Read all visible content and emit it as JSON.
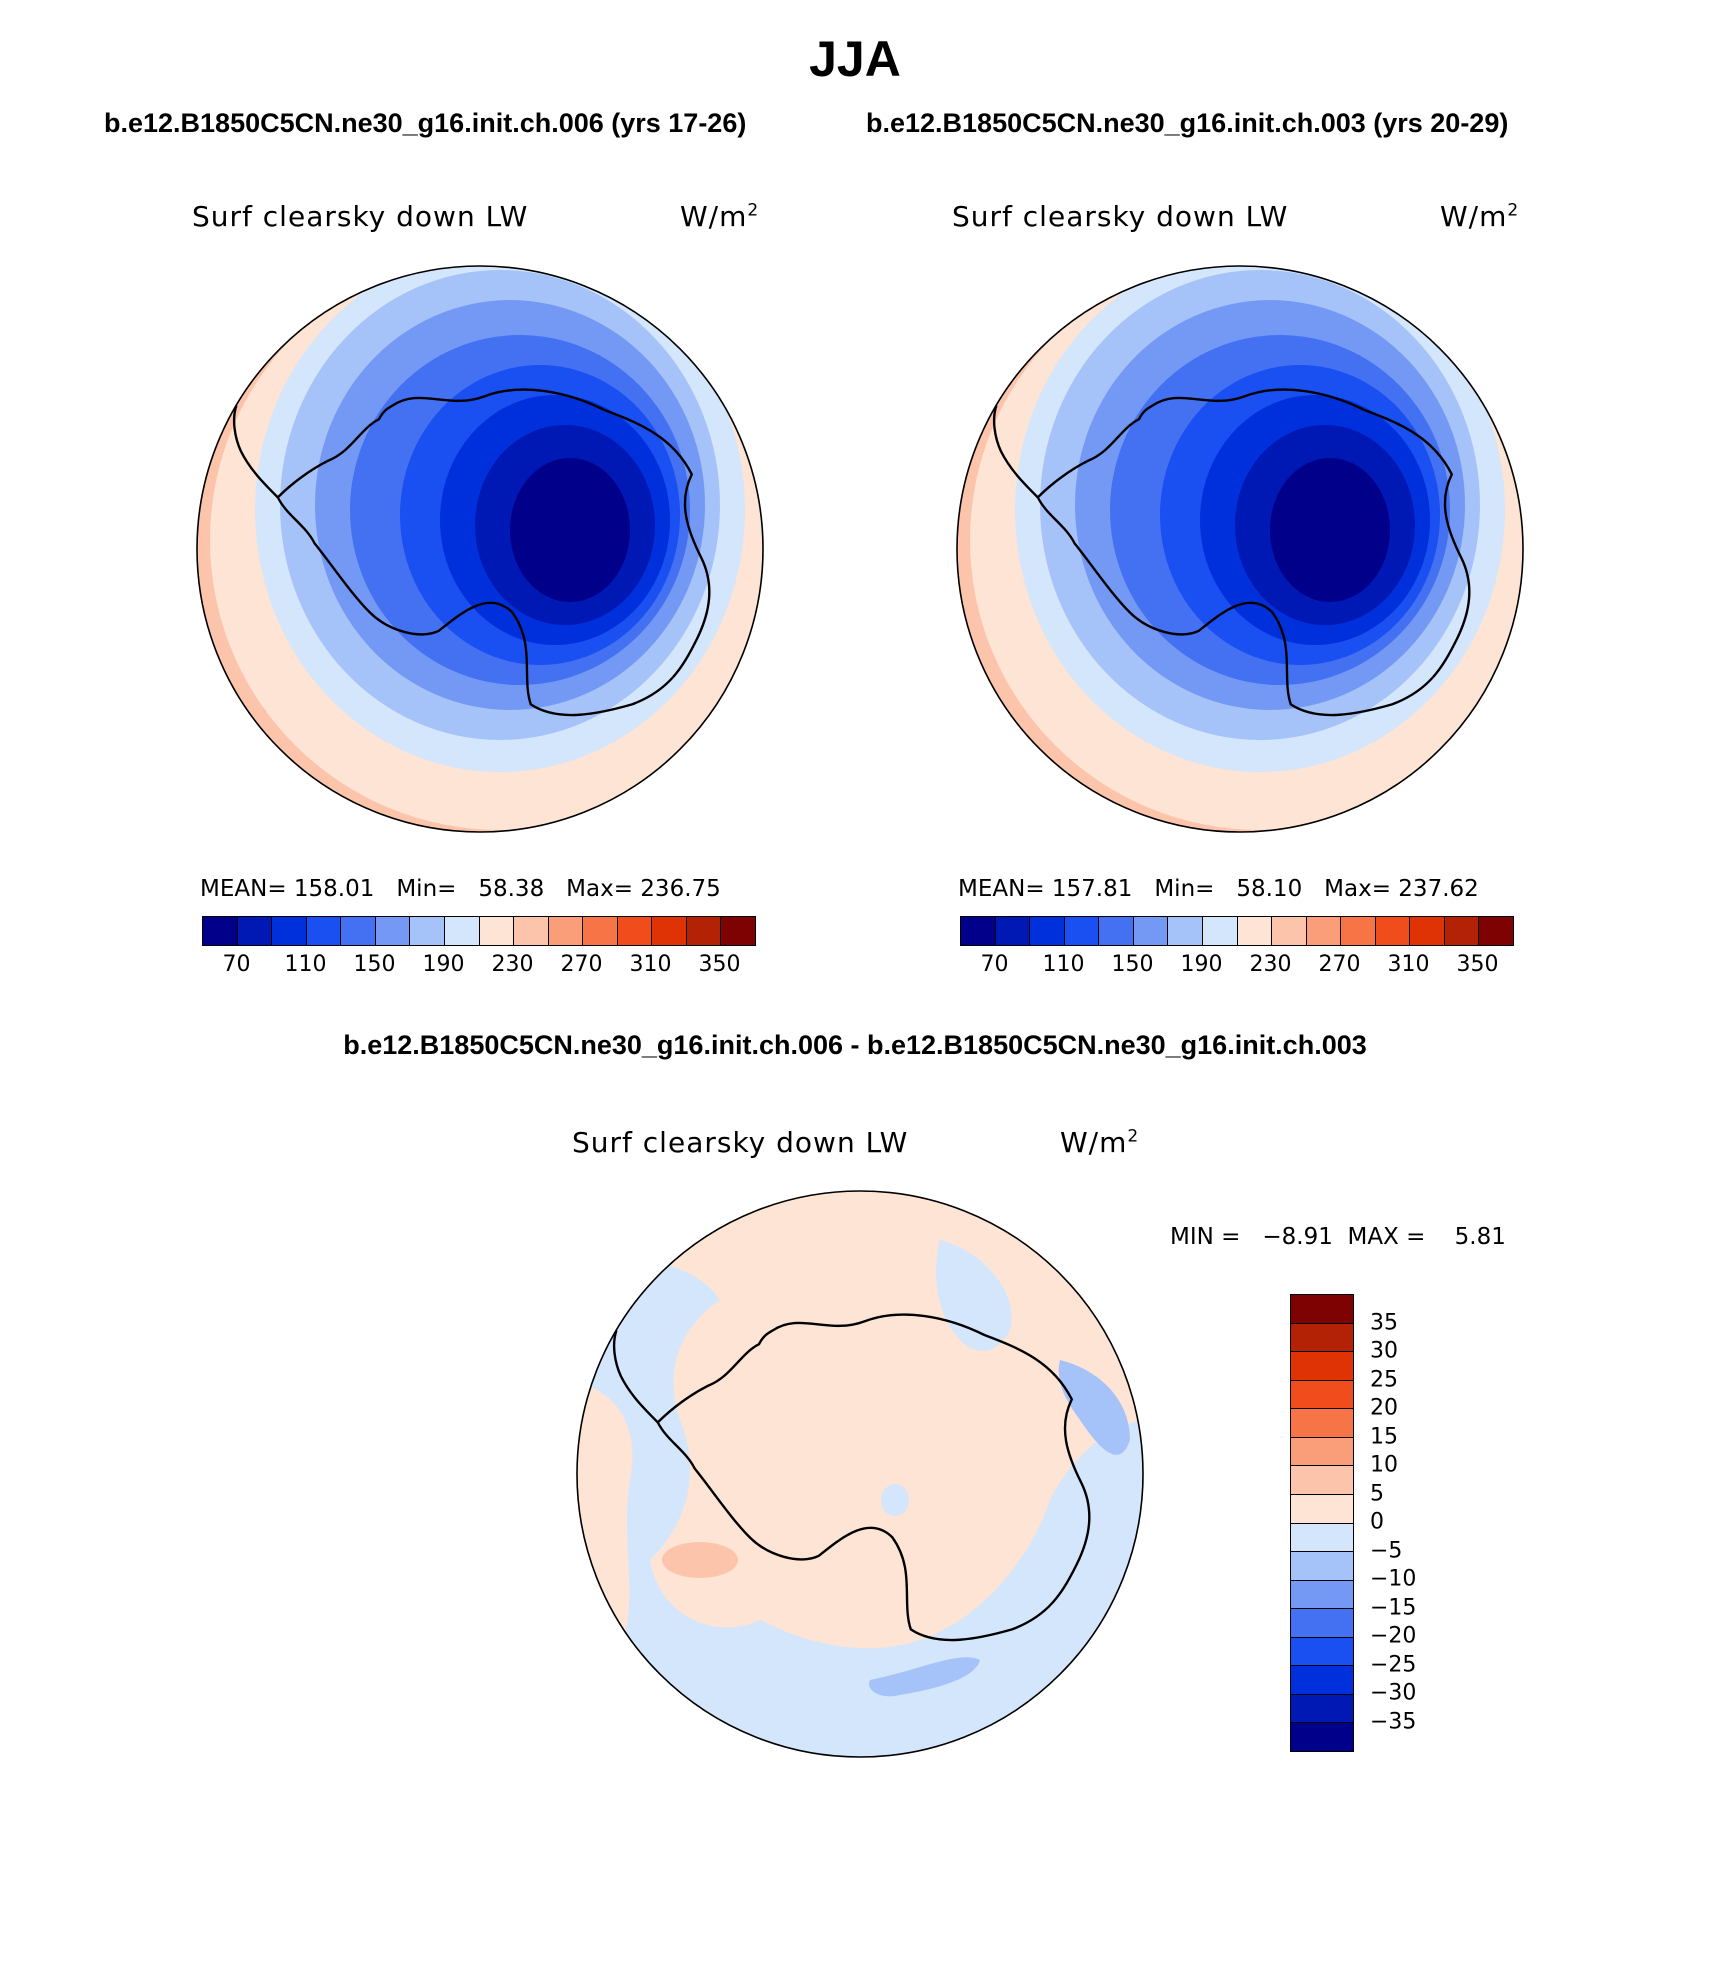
{
  "figure": {
    "season": "JJA",
    "case_a_title": "b.e12.B1850C5CN.ne30_g16.init.ch.006 (yrs 17-26)",
    "case_b_title": "b.e12.B1850C5CN.ne30_g16.init.ch.003 (yrs 20-29)",
    "diff_title": "b.e12.B1850C5CN.ne30_g16.init.ch.006 - b.e12.B1850C5CN.ne30_g16.init.ch.003"
  },
  "panels": [
    {
      "variable_label": "Surf clearsky down LW",
      "units_base": "W/m",
      "units_exp": "2",
      "mean_label": "MEAN=",
      "mean": "158.01",
      "min_label": "Min=",
      "min": "58.38",
      "max_label": "Max=",
      "max": "236.75"
    },
    {
      "variable_label": "Surf clearsky down LW",
      "units_base": "W/m",
      "units_exp": "2",
      "mean_label": "MEAN=",
      "mean": "157.81",
      "min_label": "Min=",
      "min": "58.10",
      "max_label": "Max=",
      "max": "237.62"
    }
  ],
  "diff_panel": {
    "variable_label": "Surf clearsky down LW",
    "units_base": "W/m",
    "units_exp": "2",
    "min_label": "MIN =",
    "min": "−8.91",
    "max_label": "MAX =",
    "max": "5.81"
  },
  "abs_colorbar": {
    "colors": [
      "#00008b",
      "#0018b4",
      "#0030dc",
      "#1a4ff2",
      "#4471f2",
      "#7399f4",
      "#a6c3f9",
      "#d4e6fc",
      "#fde4d4",
      "#fcc4ab",
      "#fa9e7a",
      "#f77447",
      "#f04c1c",
      "#df3305",
      "#b32204",
      "#7e0202"
    ],
    "tick_labels": [
      "70",
      "110",
      "150",
      "190",
      "230",
      "270",
      "310",
      "350"
    ]
  },
  "diff_colorbar": {
    "colors_top_to_bottom": [
      "#7e0202",
      "#b32204",
      "#df3305",
      "#f04c1c",
      "#f77447",
      "#fa9e7a",
      "#fcc4ab",
      "#fde4d4",
      "#d4e6fc",
      "#a6c3f9",
      "#7399f4",
      "#4471f2",
      "#1a4ff2",
      "#0030dc",
      "#0018b4",
      "#00008b"
    ],
    "tick_labels_top_to_bottom": [
      "35",
      "30",
      "25",
      "20",
      "15",
      "10",
      "5",
      "0",
      "−5",
      "−10",
      "−15",
      "−20",
      "−25",
      "−30",
      "−35"
    ]
  }
}
